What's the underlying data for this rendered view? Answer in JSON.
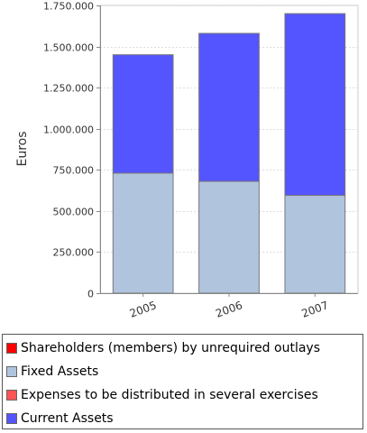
{
  "chart_data": {
    "type": "bar",
    "stacked": true,
    "categories": [
      "2005",
      "2006",
      "2007"
    ],
    "series": [
      {
        "name": "Shareholders (members) by unrequired outlays",
        "color": "#ff0000",
        "values": [
          0,
          0,
          0
        ]
      },
      {
        "name": "Fixed Assets",
        "color": "#b0c4de",
        "values": [
          730000,
          680000,
          595000
        ]
      },
      {
        "name": "Expenses to be distributed in several exercises",
        "color": "#ff5555",
        "values": [
          0,
          0,
          0
        ]
      },
      {
        "name": "Current Assets",
        "color": "#5555ff",
        "values": [
          720000,
          900000,
          1105000
        ]
      }
    ],
    "ylabel": "Euros",
    "xlabel": "",
    "ylim": [
      0,
      1750000
    ],
    "yticks": [
      0,
      250000,
      500000,
      750000,
      1000000,
      1250000,
      1500000,
      1750000
    ],
    "ytick_labels": [
      "0",
      "250.000",
      "500.000",
      "750.000",
      "1.000.000",
      "1.250.000",
      "1.500.000",
      "1.750.000"
    ],
    "grid": true,
    "legend_position": "bottom"
  }
}
